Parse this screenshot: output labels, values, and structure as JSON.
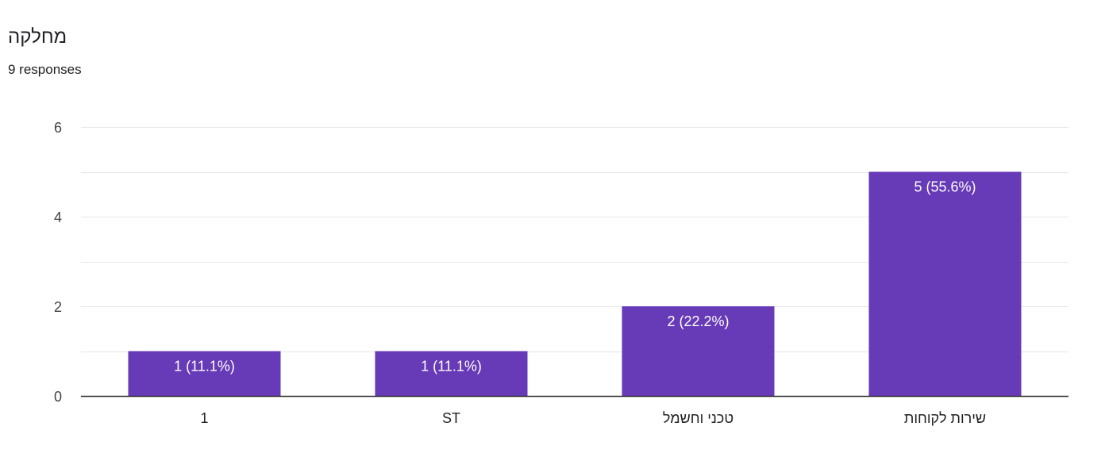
{
  "header": {
    "title": "מחלקה",
    "subtitle": "9 responses"
  },
  "colors": {
    "bar": "#673ab7",
    "grid": "#e6e6e6",
    "axis": "#333333"
  },
  "chart_data": {
    "type": "bar",
    "categories": [
      "1",
      "ST",
      "טכני וחשמל",
      "שירות לקוחות"
    ],
    "values": [
      1,
      1,
      2,
      5
    ],
    "data_labels": [
      "1 (11.1%)",
      "1 (11.1%)",
      "2 (22.2%)",
      "5 (55.6%)"
    ],
    "title": "מחלקה",
    "xlabel": "",
    "ylabel": "",
    "ylim": [
      0,
      6
    ],
    "yticks": [
      0,
      2,
      4,
      6
    ],
    "minor_grid_step": 1,
    "grid": true,
    "legend": "none"
  }
}
